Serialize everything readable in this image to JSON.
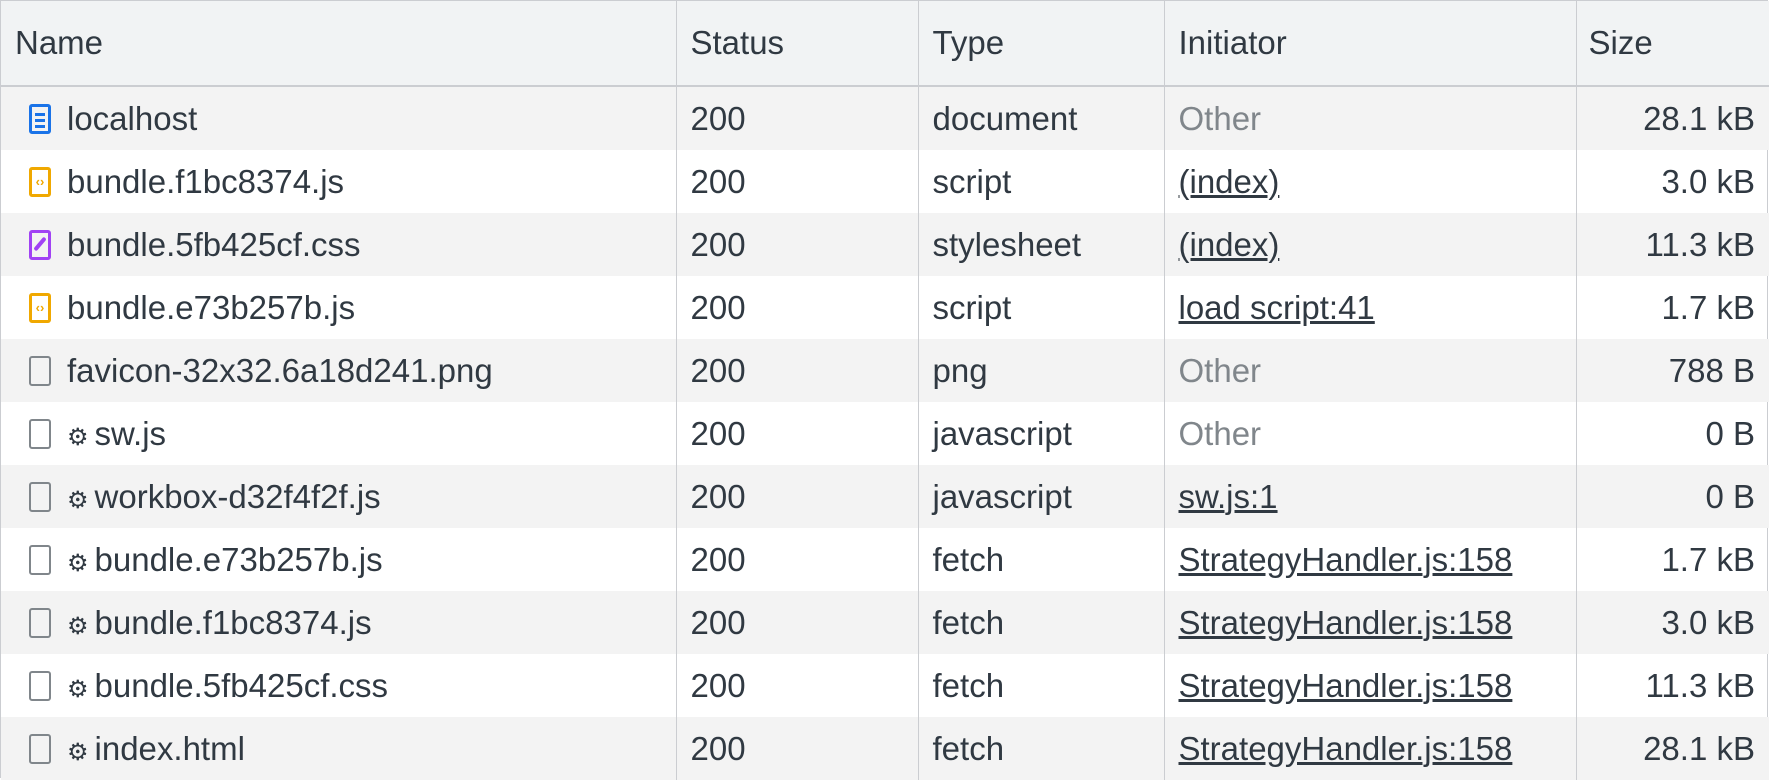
{
  "columns": [
    "Name",
    "Status",
    "Type",
    "Initiator",
    "Size"
  ],
  "colors": {
    "document": "#1a73e8",
    "script": "#f0a800",
    "stylesheet": "#a142f4",
    "other": "#80868b"
  },
  "rows": [
    {
      "name": "localhost",
      "icon": "document-icon",
      "sw": false,
      "status": "200",
      "type": "document",
      "initiator": "Other",
      "initiator_link": false,
      "size": "28.1 kB"
    },
    {
      "name": "bundle.f1bc8374.js",
      "icon": "script-icon",
      "sw": false,
      "status": "200",
      "type": "script",
      "initiator": "(index)",
      "initiator_link": true,
      "size": "3.0 kB"
    },
    {
      "name": "bundle.5fb425cf.css",
      "icon": "stylesheet-icon",
      "sw": false,
      "status": "200",
      "type": "stylesheet",
      "initiator": "(index)",
      "initiator_link": true,
      "size": "11.3 kB"
    },
    {
      "name": "bundle.e73b257b.js",
      "icon": "script-icon",
      "sw": false,
      "status": "200",
      "type": "script",
      "initiator": "load script:41",
      "initiator_link": true,
      "size": "1.7 kB"
    },
    {
      "name": "favicon-32x32.6a18d241.png",
      "icon": "file-icon",
      "sw": false,
      "status": "200",
      "type": "png",
      "initiator": "Other",
      "initiator_link": false,
      "size": "788 B"
    },
    {
      "name": "sw.js",
      "icon": "file-icon",
      "sw": true,
      "status": "200",
      "type": "javascript",
      "initiator": "Other",
      "initiator_link": false,
      "size": "0 B"
    },
    {
      "name": "workbox-d32f4f2f.js",
      "icon": "file-icon",
      "sw": true,
      "status": "200",
      "type": "javascript",
      "initiator": "sw.js:1",
      "initiator_link": true,
      "size": "0 B"
    },
    {
      "name": "bundle.e73b257b.js",
      "icon": "file-icon",
      "sw": true,
      "status": "200",
      "type": "fetch",
      "initiator": "StrategyHandler.js:158",
      "initiator_link": true,
      "size": "1.7 kB"
    },
    {
      "name": "bundle.f1bc8374.js",
      "icon": "file-icon",
      "sw": true,
      "status": "200",
      "type": "fetch",
      "initiator": "StrategyHandler.js:158",
      "initiator_link": true,
      "size": "3.0 kB"
    },
    {
      "name": "bundle.5fb425cf.css",
      "icon": "file-icon",
      "sw": true,
      "status": "200",
      "type": "fetch",
      "initiator": "StrategyHandler.js:158",
      "initiator_link": true,
      "size": "11.3 kB"
    },
    {
      "name": "index.html",
      "icon": "file-icon",
      "sw": true,
      "status": "200",
      "type": "fetch",
      "initiator": "StrategyHandler.js:158",
      "initiator_link": true,
      "size": "28.1 kB"
    }
  ]
}
